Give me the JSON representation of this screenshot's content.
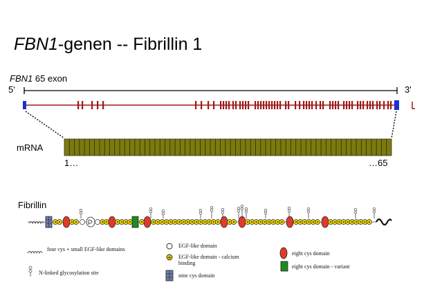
{
  "title": {
    "italic": "FBN1",
    "rest": "-genen -- Fibrillin 1"
  },
  "gene": {
    "name": "FBN1",
    "exon_label": " 65 exon",
    "five_prime": "5'",
    "three_prime": "3'",
    "exon_count": 65
  },
  "mrna": {
    "label": "mRNA",
    "start": "1…",
    "end": "…65"
  },
  "protein": {
    "label": "Fibrillin"
  },
  "legend": {
    "four_cys": "four cys + small EGF-like domains",
    "egf": "EGF-like domain",
    "egf_ca": "EGF-like domain - calcium binding",
    "eight_cys": "eight cys domain",
    "eight_cys_variant": "eight cys domain - variant",
    "nine_cys": "nine cys domain",
    "glyco": "N-linked glycosylation site"
  },
  "colors": {
    "gene_line": "#a01818",
    "exon_end": "#1f2fd0",
    "mrna_fill": "#7c7a0f",
    "egf_ca_fill": "#e8d000",
    "eight_cys_fill": "#e23a2a",
    "variant_fill": "#1f8a1f",
    "nine_cys_fill": "#6f7fa6"
  }
}
